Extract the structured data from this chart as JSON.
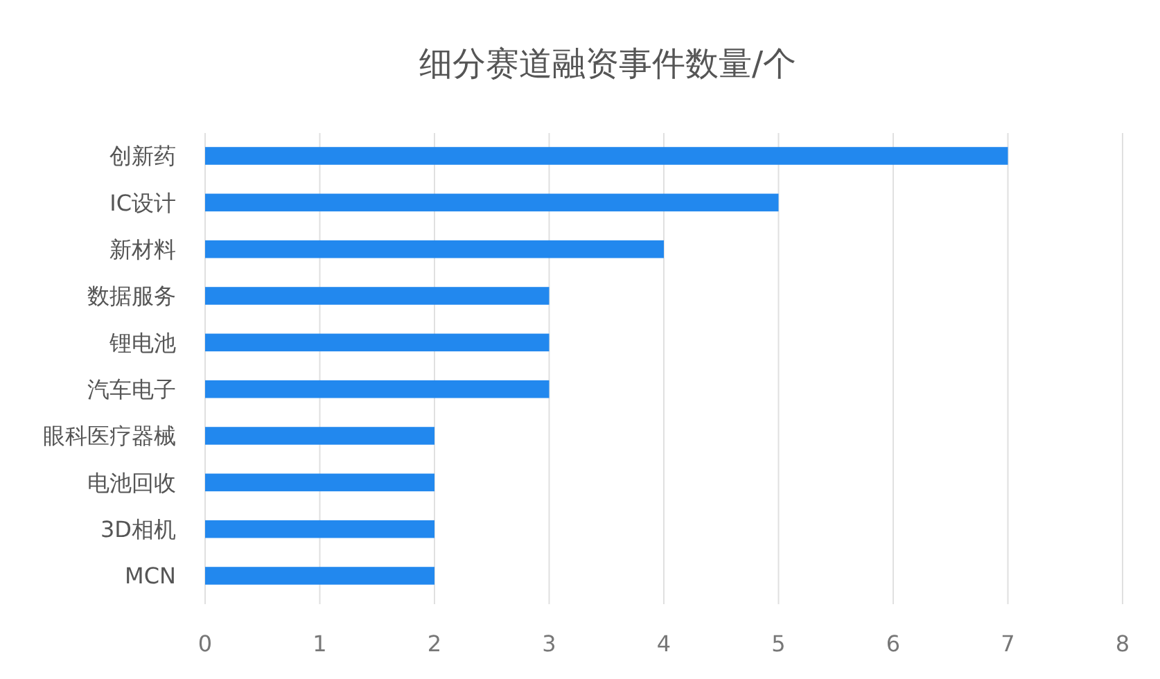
{
  "chart_data": {
    "type": "bar",
    "orientation": "horizontal",
    "title": "细分赛道融资事件数量/个",
    "categories": [
      "创新药",
      "IC设计",
      "新材料",
      "数据服务",
      "锂电池",
      "汽车电子",
      "眼科医疗器械",
      "电池回收",
      "3D相机",
      "MCN"
    ],
    "values": [
      7,
      5,
      4,
      3,
      3,
      3,
      2,
      2,
      2,
      2
    ],
    "color": "#2288ee",
    "xlim": [
      0,
      8
    ],
    "xticks": [
      0,
      1,
      2,
      3,
      4,
      5,
      6,
      7,
      8
    ],
    "grid": "x"
  }
}
